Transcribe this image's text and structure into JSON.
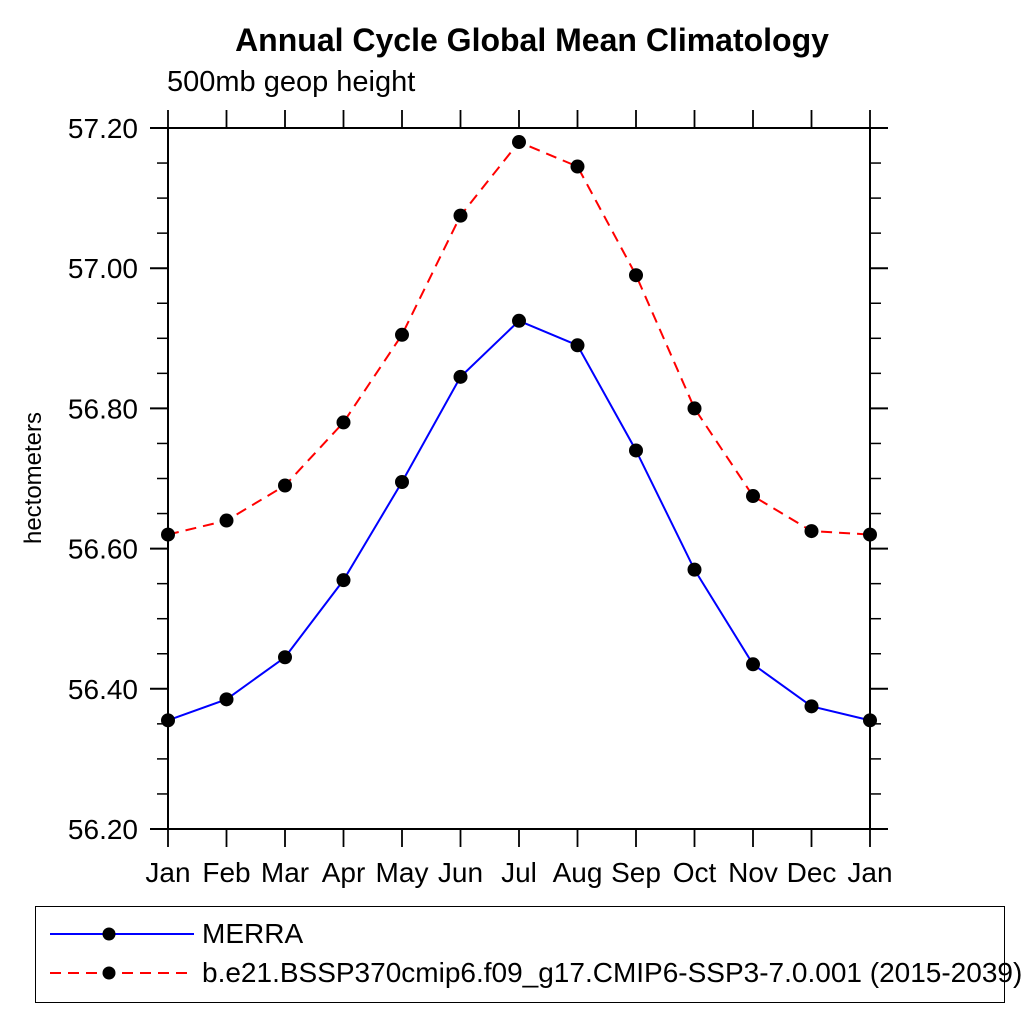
{
  "chart_data": {
    "type": "line",
    "title": "Annual Cycle Global Mean Climatology",
    "subtitle": "500mb geop height",
    "ylabel": "hectometers",
    "categories": [
      "Jan",
      "Feb",
      "Mar",
      "Apr",
      "May",
      "Jun",
      "Jul",
      "Aug",
      "Sep",
      "Oct",
      "Nov",
      "Dec",
      "Jan"
    ],
    "ylim": [
      56.2,
      57.2
    ],
    "y_tick_labels": [
      "56.20",
      "56.40",
      "56.60",
      "56.80",
      "57.00",
      "57.20"
    ],
    "y_major_step": 0.2,
    "y_minor_step": 0.05,
    "grid": false,
    "legend_position": "bottom-left-box",
    "axis_color": "#000000",
    "marker": "filled-circle",
    "marker_color": "#000000",
    "series": [
      {
        "name": "MERRA",
        "color": "#0000ff",
        "line_style": "solid",
        "values": [
          56.355,
          56.385,
          56.445,
          56.555,
          56.695,
          56.845,
          56.925,
          56.89,
          56.74,
          56.57,
          56.435,
          56.375,
          56.355
        ]
      },
      {
        "name": "b.e21.BSSP370cmip6.f09_g17.CMIP6-SSP3-7.0.001 (2015-2039)",
        "color": "#ff0000",
        "line_style": "dashed",
        "values": [
          56.62,
          56.64,
          56.69,
          56.78,
          56.905,
          57.075,
          57.18,
          57.145,
          56.99,
          56.8,
          56.675,
          56.625,
          56.62
        ]
      }
    ]
  }
}
